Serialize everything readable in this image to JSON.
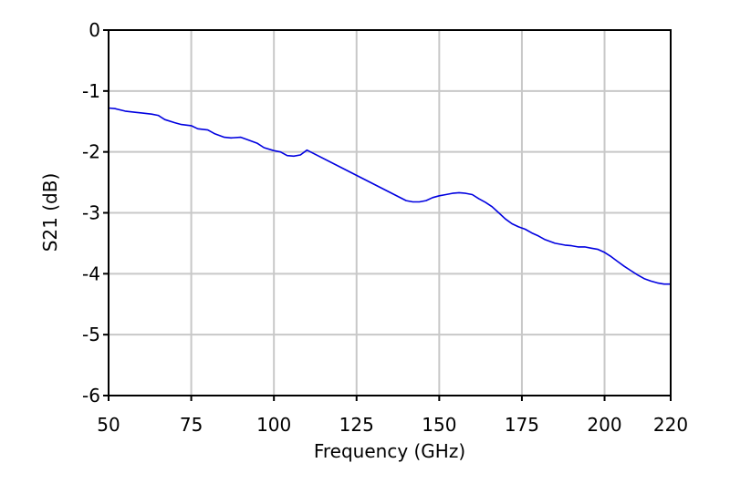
{
  "chart_data": {
    "type": "line",
    "title": "",
    "xlabel": "Frequency (GHz)",
    "ylabel": "S21 (dB)",
    "xlim": [
      50,
      220
    ],
    "ylim": [
      -6,
      0
    ],
    "grid": true,
    "legend": "none",
    "x_ticks": [
      50,
      75,
      100,
      125,
      150,
      175,
      200,
      220
    ],
    "x_tick_labels": [
      "50",
      "75",
      "100",
      "125",
      "150",
      "175",
      "200",
      "220"
    ],
    "y_ticks": [
      0,
      -1,
      -2,
      -3,
      -4,
      -5,
      -6
    ],
    "y_tick_labels": [
      "0",
      "-1",
      "-2",
      "-3",
      "-4",
      "-5",
      "-6"
    ],
    "colors": {
      "series": "#0000e0",
      "grid": "#c8c8c8",
      "frame": "#000000"
    },
    "series": [
      {
        "x": [
          50,
          52,
          55,
          58,
          60,
          63,
          65,
          67,
          70,
          72,
          75,
          77,
          80,
          82,
          85,
          87,
          90,
          92,
          95,
          97,
          100,
          102,
          104,
          106,
          108,
          110,
          140,
          142,
          144,
          146,
          148,
          150,
          152,
          154,
          156,
          158,
          160,
          162,
          164,
          166,
          168,
          170,
          172,
          174,
          176,
          178,
          180,
          182,
          185,
          188,
          190,
          192,
          194,
          196,
          198,
          200,
          202,
          204,
          206,
          208,
          210,
          212,
          214,
          216,
          218,
          220
        ],
        "y": [
          -1.28,
          -1.29,
          -1.33,
          -1.35,
          -1.36,
          -1.38,
          -1.4,
          -1.47,
          -1.52,
          -1.55,
          -1.57,
          -1.62,
          -1.64,
          -1.7,
          -1.76,
          -1.77,
          -1.76,
          -1.8,
          -1.86,
          -1.93,
          -1.98,
          -2.0,
          -2.06,
          -2.07,
          -2.05,
          -1.97,
          -2.8,
          -2.82,
          -2.82,
          -2.8,
          -2.75,
          -2.72,
          -2.7,
          -2.68,
          -2.67,
          -2.68,
          -2.7,
          -2.77,
          -2.83,
          -2.9,
          -3.0,
          -3.1,
          -3.18,
          -3.23,
          -3.27,
          -3.33,
          -3.38,
          -3.44,
          -3.5,
          -3.53,
          -3.54,
          -3.56,
          -3.56,
          -3.58,
          -3.6,
          -3.65,
          -3.72,
          -3.8,
          -3.88,
          -3.95,
          -4.02,
          -4.08,
          -4.12,
          -4.15,
          -4.17,
          -4.17
        ]
      }
    ]
  }
}
